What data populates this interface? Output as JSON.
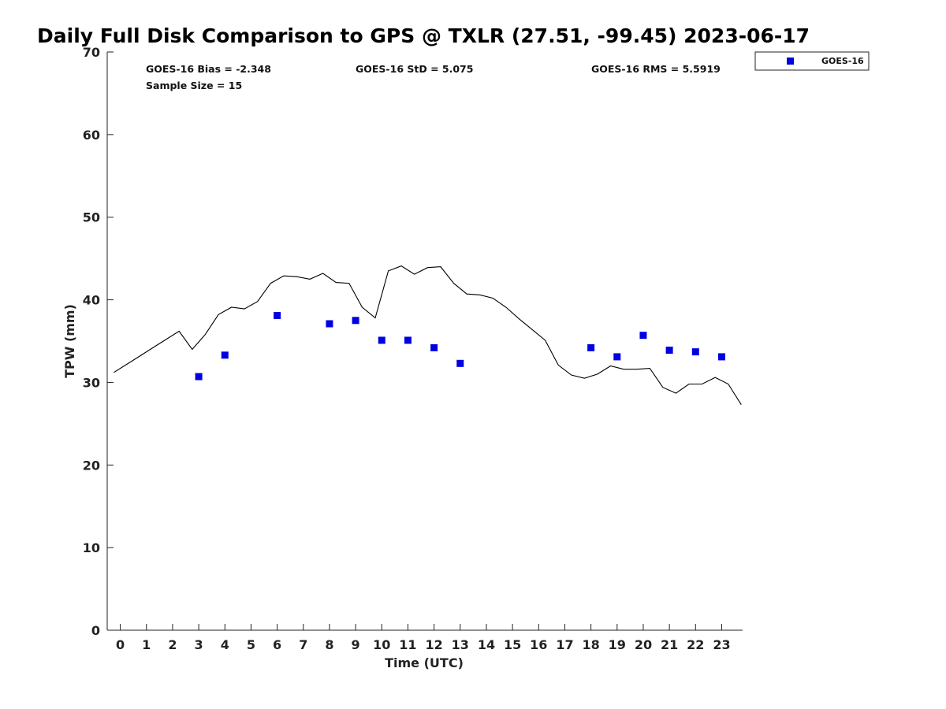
{
  "chart_data": {
    "type": "scatter",
    "title": "Daily Full Disk Comparison to GPS @ TXLR (27.51, -99.45) 2023-06-17",
    "xlabel": "Time (UTC)",
    "ylabel": "TPW (mm)",
    "xlim": [
      -0.5,
      23.8
    ],
    "ylim": [
      0,
      70
    ],
    "x_ticks": [
      0,
      1,
      2,
      3,
      4,
      5,
      6,
      7,
      8,
      9,
      10,
      11,
      12,
      13,
      14,
      15,
      16,
      17,
      18,
      19,
      20,
      21,
      22,
      23
    ],
    "y_ticks": [
      0,
      10,
      20,
      30,
      40,
      50,
      60,
      70
    ],
    "grid": false,
    "legend_position": "top-right, outside plot",
    "stats": {
      "bias": "GOES-16 Bias = -2.348",
      "std": "GOES-16 StD = 5.075",
      "rms": "GOES-16 RMS = 5.5919",
      "sample_size": "Sample Size = 15"
    },
    "series": [
      {
        "name": "GOES-16",
        "type": "scatter",
        "color": "#0000e0",
        "marker": "square",
        "x": [
          3,
          4,
          6,
          8,
          9,
          10,
          11,
          12,
          13,
          18,
          19,
          20,
          21,
          22,
          23
        ],
        "y": [
          30.7,
          33.3,
          38.1,
          37.1,
          37.5,
          35.1,
          35.1,
          34.2,
          32.3,
          34.2,
          33.1,
          35.7,
          33.9,
          33.7,
          33.1
        ]
      },
      {
        "type": "line",
        "color": "#000000",
        "x": [
          -0.25,
          0.25,
          0.75,
          1.25,
          1.75,
          2.25,
          2.75,
          3.25,
          3.75,
          4.25,
          4.75,
          5.25,
          5.75,
          6.25,
          6.75,
          7.25,
          7.75,
          8.25,
          8.75,
          9.25,
          9.75,
          10.25,
          10.75,
          11.25,
          11.75,
          12.25,
          12.75,
          13.25,
          13.75,
          14.25,
          14.75,
          15.25,
          15.75,
          16.25,
          16.75,
          17.25,
          17.75,
          18.25,
          18.75,
          19.25,
          19.75,
          20.25,
          20.75,
          21.25,
          21.75,
          22.25,
          22.75,
          23.25,
          23.75
        ],
        "y": [
          31.2,
          32.2,
          33.2,
          34.2,
          35.2,
          36.2,
          34.0,
          35.8,
          38.2,
          39.1,
          38.9,
          39.8,
          42.0,
          42.9,
          42.8,
          42.5,
          43.2,
          42.1,
          42.0,
          39.1,
          37.8,
          43.5,
          44.1,
          43.1,
          43.9,
          44.0,
          42.0,
          40.7,
          40.6,
          40.2,
          39.1,
          37.7,
          36.4,
          35.1,
          32.1,
          30.9,
          30.5,
          31.0,
          32.0,
          31.6,
          31.6,
          31.7,
          29.4,
          28.7,
          29.8,
          29.8,
          30.6,
          29.8,
          27.3
        ]
      }
    ]
  }
}
